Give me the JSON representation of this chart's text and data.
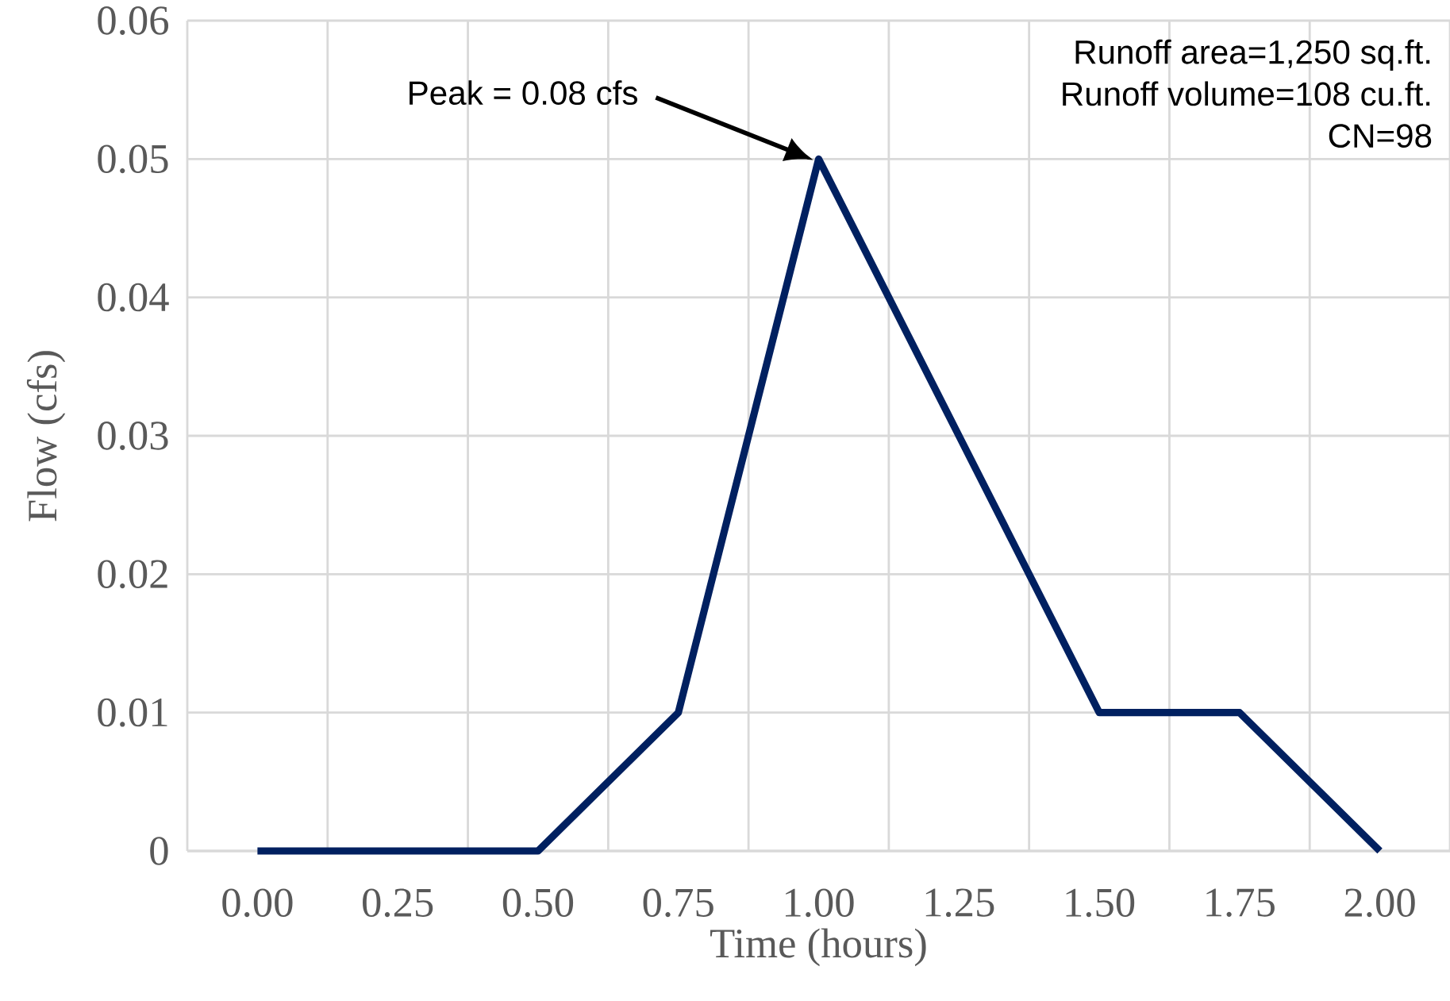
{
  "chart_data": {
    "type": "line",
    "xlabel": "Time (hours)",
    "ylabel": "Flow (cfs)",
    "categories": [
      "0.00",
      "0.25",
      "0.50",
      "0.75",
      "1.00",
      "1.25",
      "1.50",
      "1.75",
      "2.00"
    ],
    "series": [
      {
        "color": "#002060",
        "values": [
          0,
          0,
          0,
          0.01,
          0.05,
          0.03,
          0.01,
          0.01,
          0
        ]
      }
    ],
    "ylim": [
      0,
      0.06
    ],
    "yticks": [
      0,
      0.01,
      0.02,
      0.03,
      0.04,
      0.05,
      0.06
    ],
    "grid": true,
    "marker": "none",
    "line_style": "solid",
    "annotations": [
      "Peak = 0.08 cfs",
      "Runoff area=1,250 sq.ft.",
      "Runoff volume=108 cu.ft.",
      "CN=98"
    ]
  }
}
